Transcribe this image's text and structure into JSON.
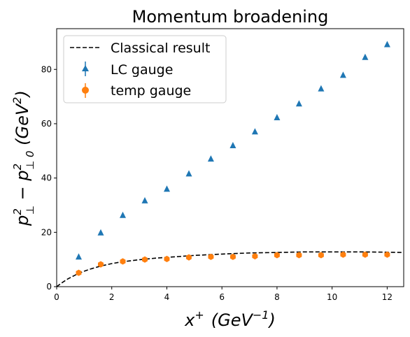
{
  "chart_data": {
    "type": "scatter",
    "title": "Momentum broadening",
    "xlabel": {
      "main": "x",
      "sup": "+",
      "unit_open": "(GeV",
      "unit_sup": "−1",
      "unit_close": ")"
    },
    "ylabel": {
      "p1": "p",
      "p1_sup": "2",
      "p1_sub": "⊥",
      "minus": " − ",
      "p2": "p",
      "p2_sup": "2",
      "p2_sub": "⊥ 0",
      "unit_open": " (GeV",
      "unit_sup": "2",
      "unit_close": ")"
    },
    "xlim": [
      0,
      12.6
    ],
    "ylim": [
      0,
      95
    ],
    "xticks": [
      0,
      2,
      4,
      6,
      8,
      10,
      12
    ],
    "yticks": [
      0,
      20,
      40,
      60,
      80
    ],
    "grid": false,
    "legend_position": "top-left",
    "series": [
      {
        "name": "Classical result",
        "kind": "line",
        "style": "dashed",
        "color": "#000000",
        "x": [
          0,
          0.2,
          0.4,
          0.6,
          0.8,
          1.0,
          1.2,
          1.6,
          2.0,
          2.4,
          3.0,
          3.6,
          4.0,
          5.0,
          6.0,
          7.0,
          8.0,
          9.0,
          10.0,
          11.0,
          12.0,
          12.6
        ],
        "y": [
          0,
          1.5,
          2.8,
          3.9,
          4.9,
          5.7,
          6.4,
          7.6,
          8.5,
          9.2,
          9.9,
          10.5,
          10.8,
          11.5,
          12.0,
          12.4,
          12.6,
          12.8,
          12.8,
          12.8,
          12.7,
          12.6
        ]
      },
      {
        "name": "LC gauge",
        "kind": "points",
        "marker": "triangle",
        "color": "#1f77b4",
        "x": [
          0.8,
          1.6,
          2.4,
          3.2,
          4.0,
          4.8,
          5.6,
          6.4,
          7.2,
          8.0,
          8.8,
          9.6,
          10.4,
          11.2,
          12.0
        ],
        "y": [
          11.0,
          19.9,
          26.3,
          31.7,
          36.0,
          41.6,
          47.1,
          52.0,
          57.1,
          62.3,
          67.4,
          72.9,
          77.9,
          84.5,
          89.2
        ]
      },
      {
        "name": "temp gauge",
        "kind": "points",
        "marker": "hexagon",
        "color": "#ff7f0e",
        "x": [
          0.8,
          1.6,
          2.4,
          3.2,
          4.0,
          4.8,
          5.6,
          6.4,
          7.2,
          8.0,
          8.8,
          9.6,
          10.4,
          11.2,
          12.0
        ],
        "y": [
          5.1,
          8.2,
          9.3,
          10.0,
          10.2,
          10.8,
          11.0,
          11.0,
          11.2,
          11.6,
          11.6,
          11.6,
          11.8,
          11.8,
          11.8
        ]
      }
    ]
  }
}
